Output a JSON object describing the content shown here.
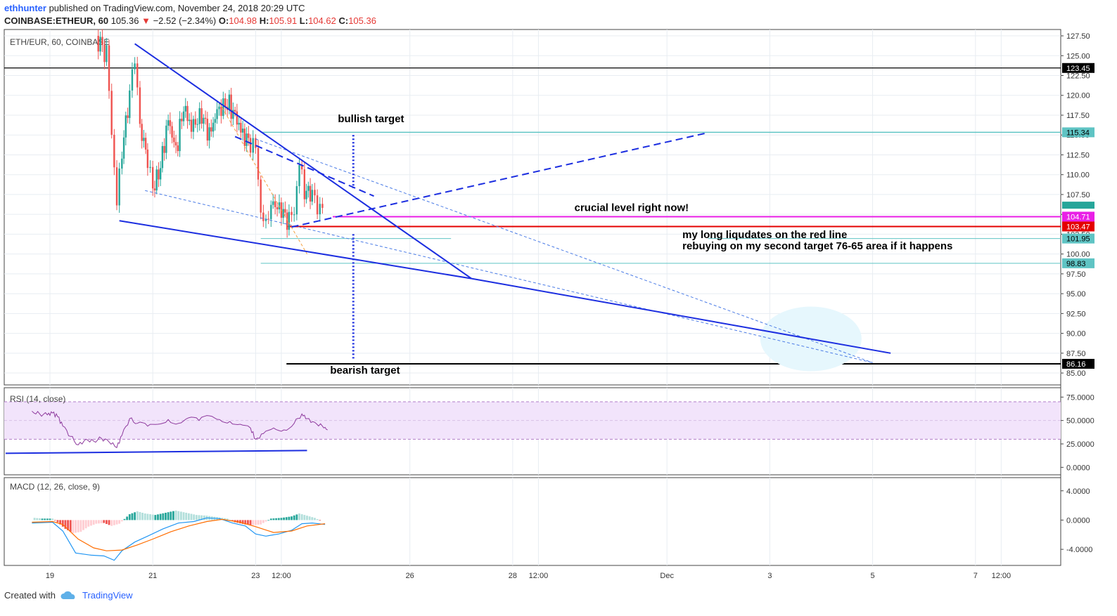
{
  "header": {
    "author": "ethhunter",
    "published_text": "published on TradingView.com, November 24, 2018 20:29 UTC",
    "symbol": "COINBASE:ETHEUR, 60",
    "last": "105.36",
    "change": "−2.52 (−2.34%)",
    "o_label": "O:",
    "o": "104.98",
    "h_label": "H:",
    "h": "105.91",
    "l_label": "L:",
    "l": "104.62",
    "c_label": "C:",
    "c": "105.36"
  },
  "footer": {
    "created_with": "Created with",
    "brand": "TradingView"
  },
  "colors": {
    "blue": "#1c2ee0",
    "teal": "#26a69a",
    "red": "#ef5350",
    "magenta": "#e91ee6",
    "crimson": "#e40000"
  },
  "chart_data": [
    {
      "type": "line",
      "title": "ETH/EUR, 60, COINBASE",
      "ylim": [
        83.5,
        128.3
      ],
      "yticks": [
        85.0,
        87.5,
        90.0,
        92.5,
        95.0,
        97.5,
        100.0,
        102.5,
        105.0,
        107.5,
        110.0,
        112.5,
        115.0,
        117.5,
        120.0,
        122.5,
        125.0,
        127.5
      ],
      "ytick_labels": [
        "85.00",
        "87.50",
        "90.00",
        "92.50",
        "95.00",
        "97.50",
        "100.00",
        "102.50",
        "105.00",
        "107.50",
        "110.00",
        "112.50",
        "115.00",
        "117.50",
        "120.00",
        "122.50",
        "125.00",
        "127.50"
      ],
      "xticks": [
        {
          "label": "19",
          "d": 19.0
        },
        {
          "label": "21",
          "d": 21.0
        },
        {
          "label": "23",
          "d": 23.0
        },
        {
          "label": "12:00",
          "d": 23.5
        },
        {
          "label": "26",
          "d": 26.0
        },
        {
          "label": "28",
          "d": 28.0
        },
        {
          "label": "12:00",
          "d": 28.5
        },
        {
          "label": "Dec",
          "d": 31.0
        },
        {
          "label": "3",
          "d": 33.0
        },
        {
          "label": "5",
          "d": 35.0
        },
        {
          "label": "7",
          "d": 37.0
        },
        {
          "label": "12:00",
          "d": 37.5
        }
      ],
      "price_tags": [
        {
          "value": 123.45,
          "label": "123.45",
          "bg": "#000000",
          "fg": "#ffffff"
        },
        {
          "value": 115.34,
          "label": "115.34",
          "bg": "#5fc4c4",
          "fg": "#000000"
        },
        {
          "value": 104.71,
          "label": "104.71",
          "bg": "#e91ee6",
          "fg": "#ffffff"
        },
        {
          "value": 103.47,
          "label": "103.47",
          "bg": "#e40000",
          "fg": "#ffffff"
        },
        {
          "value": 101.95,
          "label": "101.95",
          "bg": "#5fc4c4",
          "fg": "#000000"
        },
        {
          "value": 98.83,
          "label": "98.83",
          "bg": "#5fc4c4",
          "fg": "#000000"
        },
        {
          "value": 86.16,
          "label": "86.16",
          "bg": "#000000",
          "fg": "#ffffff"
        }
      ],
      "annotations": [
        {
          "text": "bullish target"
        },
        {
          "text": "crucial level right now!"
        },
        {
          "text": "my long liqudates on the red line"
        },
        {
          "text": "rebuying on my second target 76-65 area if it happens"
        },
        {
          "text": "bearish target"
        }
      ],
      "close_series": [
        {
          "d": 19.9,
          "v": 127.5
        },
        {
          "d": 20.1,
          "v": 125.0
        },
        {
          "d": 20.2,
          "v": 116.0
        },
        {
          "d": 20.3,
          "v": 106.0
        },
        {
          "d": 20.4,
          "v": 113.0
        },
        {
          "d": 20.55,
          "v": 120.0
        },
        {
          "d": 20.65,
          "v": 125.5
        },
        {
          "d": 20.75,
          "v": 116.0
        },
        {
          "d": 20.9,
          "v": 112.0
        },
        {
          "d": 21.0,
          "v": 108.0
        },
        {
          "d": 21.15,
          "v": 111.0
        },
        {
          "d": 21.3,
          "v": 117.0
        },
        {
          "d": 21.45,
          "v": 113.0
        },
        {
          "d": 21.6,
          "v": 118.5
        },
        {
          "d": 21.75,
          "v": 116.0
        },
        {
          "d": 21.95,
          "v": 117.5
        },
        {
          "d": 22.1,
          "v": 115.0
        },
        {
          "d": 22.25,
          "v": 118.0
        },
        {
          "d": 22.45,
          "v": 119.0
        },
        {
          "d": 22.6,
          "v": 117.5
        },
        {
          "d": 22.75,
          "v": 115.0
        },
        {
          "d": 22.9,
          "v": 114.0
        },
        {
          "d": 23.0,
          "v": 113.0
        },
        {
          "d": 23.1,
          "v": 106.0
        },
        {
          "d": 23.2,
          "v": 103.0
        },
        {
          "d": 23.3,
          "v": 106.5
        },
        {
          "d": 23.5,
          "v": 105.5
        },
        {
          "d": 23.65,
          "v": 104.0
        },
        {
          "d": 23.75,
          "v": 106.0
        },
        {
          "d": 23.85,
          "v": 111.0
        },
        {
          "d": 23.95,
          "v": 108.0
        },
        {
          "d": 24.1,
          "v": 107.5
        },
        {
          "d": 24.2,
          "v": 106.5
        },
        {
          "d": 24.3,
          "v": 105.36
        }
      ]
    },
    {
      "type": "line",
      "title": "RSI (14, close)",
      "ylim": [
        -8,
        85
      ],
      "yticks": [
        0,
        25,
        50,
        75
      ],
      "ytick_labels": [
        "0.0000",
        "25.0000",
        "50.0000",
        "75.0000"
      ],
      "band": [
        30,
        70
      ],
      "values": [
        {
          "d": 18.65,
          "v": 60
        },
        {
          "d": 18.8,
          "v": 57
        },
        {
          "d": 18.95,
          "v": 56
        },
        {
          "d": 19.05,
          "v": 58
        },
        {
          "d": 19.15,
          "v": 54
        },
        {
          "d": 19.25,
          "v": 44
        },
        {
          "d": 19.4,
          "v": 33
        },
        {
          "d": 19.55,
          "v": 24
        },
        {
          "d": 19.7,
          "v": 30
        },
        {
          "d": 19.85,
          "v": 28
        },
        {
          "d": 20.0,
          "v": 31
        },
        {
          "d": 20.15,
          "v": 27
        },
        {
          "d": 20.3,
          "v": 21
        },
        {
          "d": 20.4,
          "v": 34
        },
        {
          "d": 20.55,
          "v": 52
        },
        {
          "d": 20.7,
          "v": 47
        },
        {
          "d": 20.9,
          "v": 44
        },
        {
          "d": 21.1,
          "v": 46
        },
        {
          "d": 21.3,
          "v": 51
        },
        {
          "d": 21.5,
          "v": 47
        },
        {
          "d": 21.7,
          "v": 53
        },
        {
          "d": 21.9,
          "v": 50
        },
        {
          "d": 22.1,
          "v": 55
        },
        {
          "d": 22.3,
          "v": 51
        },
        {
          "d": 22.5,
          "v": 49
        },
        {
          "d": 22.7,
          "v": 46
        },
        {
          "d": 22.9,
          "v": 42
        },
        {
          "d": 23.0,
          "v": 30
        },
        {
          "d": 23.15,
          "v": 36
        },
        {
          "d": 23.35,
          "v": 42
        },
        {
          "d": 23.55,
          "v": 40
        },
        {
          "d": 23.75,
          "v": 47
        },
        {
          "d": 23.9,
          "v": 57
        },
        {
          "d": 24.0,
          "v": 52
        },
        {
          "d": 24.15,
          "v": 48
        },
        {
          "d": 24.3,
          "v": 44
        },
        {
          "d": 24.4,
          "v": 40
        }
      ]
    },
    {
      "type": "bar",
      "title": "MACD (12, 26, close, 9)",
      "ylim": [
        -6.2,
        5.8
      ],
      "yticks": [
        -4,
        0,
        4
      ],
      "ytick_labels": [
        "-4.0000",
        "0.0000",
        "4.0000"
      ],
      "series": [
        {
          "values": [
            {
              "d": 18.65,
              "v": -0.4
            },
            {
              "d": 19.05,
              "v": -0.3
            },
            {
              "d": 19.25,
              "v": -1.5
            },
            {
              "d": 19.5,
              "v": -4.5
            },
            {
              "d": 19.8,
              "v": -4.8
            },
            {
              "d": 20.05,
              "v": -4.9
            },
            {
              "d": 20.25,
              "v": -5.5
            },
            {
              "d": 20.4,
              "v": -4.2
            },
            {
              "d": 20.65,
              "v": -3.0
            },
            {
              "d": 20.9,
              "v": -2.2
            },
            {
              "d": 21.2,
              "v": -1.2
            },
            {
              "d": 21.5,
              "v": -0.4
            },
            {
              "d": 21.8,
              "v": -0.2
            },
            {
              "d": 22.05,
              "v": 0.3
            },
            {
              "d": 22.3,
              "v": 0.2
            },
            {
              "d": 22.55,
              "v": -0.4
            },
            {
              "d": 22.8,
              "v": -0.8
            },
            {
              "d": 23.0,
              "v": -1.9
            },
            {
              "d": 23.2,
              "v": -2.2
            },
            {
              "d": 23.45,
              "v": -1.9
            },
            {
              "d": 23.7,
              "v": -1.4
            },
            {
              "d": 23.9,
              "v": -0.5
            },
            {
              "d": 24.1,
              "v": -0.4
            },
            {
              "d": 24.35,
              "v": -0.6
            }
          ]
        },
        {
          "values": [
            {
              "d": 18.65,
              "v": -0.3
            },
            {
              "d": 19.05,
              "v": -0.2
            },
            {
              "d": 19.25,
              "v": -0.6
            },
            {
              "d": 19.55,
              "v": -2.6
            },
            {
              "d": 19.85,
              "v": -3.8
            },
            {
              "d": 20.1,
              "v": -4.2
            },
            {
              "d": 20.4,
              "v": -4.1
            },
            {
              "d": 20.7,
              "v": -3.4
            },
            {
              "d": 21.0,
              "v": -2.6
            },
            {
              "d": 21.35,
              "v": -1.6
            },
            {
              "d": 21.7,
              "v": -0.8
            },
            {
              "d": 22.05,
              "v": -0.2
            },
            {
              "d": 22.35,
              "v": 0.1
            },
            {
              "d": 22.7,
              "v": -0.3
            },
            {
              "d": 23.0,
              "v": -0.9
            },
            {
              "d": 23.35,
              "v": -1.7
            },
            {
              "d": 23.7,
              "v": -1.5
            },
            {
              "d": 24.0,
              "v": -0.8
            },
            {
              "d": 24.35,
              "v": -0.5
            }
          ]
        },
        {
          "values": [
            {
              "d": 18.7,
              "v": 0.3
            },
            {
              "d": 18.85,
              "v": 0.2
            },
            {
              "d": 19.05,
              "v": 0.2
            },
            {
              "d": 19.15,
              "v": -0.3
            },
            {
              "d": 19.3,
              "v": -1.2
            },
            {
              "d": 19.45,
              "v": -1.8
            },
            {
              "d": 19.6,
              "v": -1.6
            },
            {
              "d": 19.75,
              "v": -0.9
            },
            {
              "d": 19.9,
              "v": -0.5
            },
            {
              "d": 20.05,
              "v": -0.4
            },
            {
              "d": 20.2,
              "v": -0.8
            },
            {
              "d": 20.35,
              "v": -0.5
            },
            {
              "d": 20.55,
              "v": 0.8
            },
            {
              "d": 20.7,
              "v": 1.2
            },
            {
              "d": 20.85,
              "v": 0.9
            },
            {
              "d": 21.05,
              "v": 0.7
            },
            {
              "d": 21.25,
              "v": 1.0
            },
            {
              "d": 21.45,
              "v": 1.3
            },
            {
              "d": 21.65,
              "v": 1.0
            },
            {
              "d": 21.85,
              "v": 0.7
            },
            {
              "d": 22.05,
              "v": 0.6
            },
            {
              "d": 22.25,
              "v": 0.4
            },
            {
              "d": 22.45,
              "v": 0.2
            },
            {
              "d": 22.6,
              "v": -0.3
            },
            {
              "d": 22.8,
              "v": -0.6
            },
            {
              "d": 22.95,
              "v": -0.7
            },
            {
              "d": 23.1,
              "v": -0.6
            },
            {
              "d": 23.3,
              "v": 0.2
            },
            {
              "d": 23.5,
              "v": 0.3
            },
            {
              "d": 23.7,
              "v": 0.5
            },
            {
              "d": 23.85,
              "v": 0.9
            },
            {
              "d": 24.0,
              "v": 0.6
            },
            {
              "d": 24.15,
              "v": 0.3
            },
            {
              "d": 24.3,
              "v": -0.2
            }
          ]
        }
      ]
    }
  ]
}
